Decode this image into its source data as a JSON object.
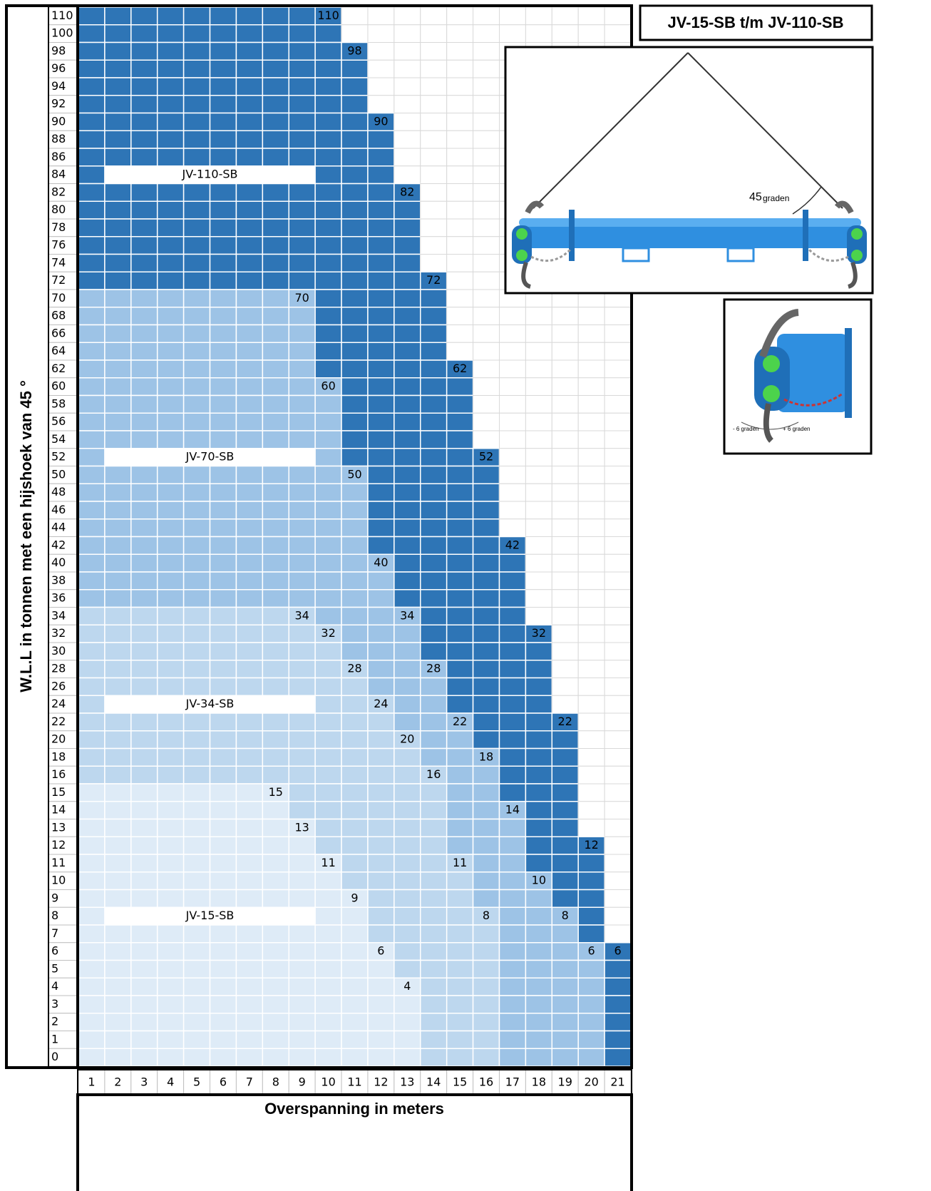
{
  "title": "JV-15-SB t/m JV-110-SB",
  "y_axis_label": "W.L.L in tonnen met een hijshoek van 45 °",
  "x_axis_label": "Overspanning in meters",
  "rows": [
    110,
    100,
    98,
    96,
    94,
    92,
    90,
    88,
    86,
    84,
    82,
    80,
    78,
    76,
    74,
    72,
    70,
    68,
    66,
    64,
    62,
    60,
    58,
    56,
    54,
    52,
    50,
    48,
    46,
    44,
    42,
    40,
    38,
    36,
    34,
    32,
    30,
    28,
    26,
    24,
    22,
    20,
    18,
    16,
    15,
    14,
    13,
    12,
    11,
    10,
    9,
    8,
    7,
    6,
    5,
    4,
    3,
    2,
    1,
    0
  ],
  "columns": [
    1,
    2,
    3,
    4,
    5,
    6,
    7,
    8,
    9,
    10,
    11,
    12,
    13,
    14,
    15,
    16,
    17,
    18,
    19,
    20,
    21
  ],
  "models": [
    {
      "name": "JV-15-SB",
      "color": "#deebf7",
      "label_row": 8,
      "capacity": [
        15,
        15,
        15,
        15,
        15,
        15,
        15,
        15,
        13,
        11,
        9,
        6,
        4,
        null,
        null,
        null,
        null,
        null,
        null,
        null,
        null
      ]
    },
    {
      "name": "JV-34-SB",
      "color": "#bdd7ee",
      "label_row": 24,
      "capacity": [
        34,
        34,
        34,
        34,
        34,
        34,
        34,
        34,
        34,
        32,
        28,
        24,
        20,
        16,
        11,
        8,
        null,
        null,
        null,
        null,
        null
      ]
    },
    {
      "name": "JV-70-SB",
      "color": "#9dc3e6",
      "label_row": 52,
      "capacity": [
        70,
        70,
        70,
        70,
        70,
        70,
        70,
        70,
        70,
        60,
        50,
        40,
        34,
        28,
        22,
        18,
        14,
        10,
        8,
        6,
        null
      ]
    },
    {
      "name": "JV-110-SB",
      "color": "#2e75b6",
      "label_row": 84,
      "capacity": [
        110,
        110,
        110,
        110,
        110,
        110,
        110,
        110,
        110,
        110,
        98,
        90,
        82,
        72,
        62,
        52,
        42,
        32,
        22,
        12,
        6
      ]
    }
  ],
  "image_texts": {
    "angle": "45",
    "angle_unit": "graden",
    "tilt_minus": "- 6 graden",
    "tilt_plus": "+ 6 graden"
  }
}
